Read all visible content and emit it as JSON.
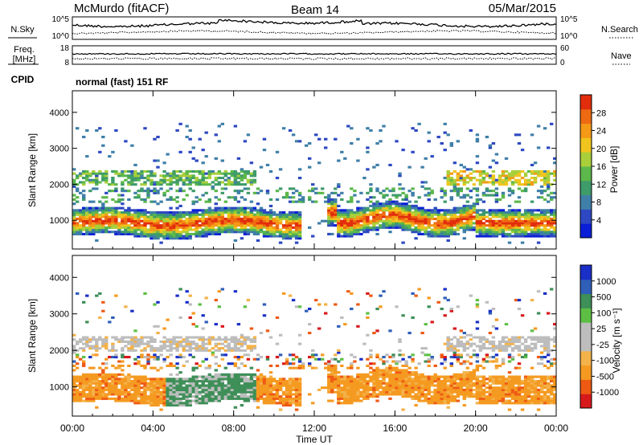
{
  "header": {
    "station": "McMurdo (fitACF)",
    "beam": "Beam 14",
    "date": "05/Mar/2015"
  },
  "noise_panel": {
    "left_label": "N.Sky",
    "right_label": "N.Search",
    "left_ticks": [
      "10^5",
      "10^0"
    ],
    "right_ticks": [
      "10^5",
      "10^0"
    ]
  },
  "freq_panel": {
    "label_line1": "Freq.",
    "label_line2": "[MHz]",
    "left_ticks": [
      "18",
      "8"
    ],
    "right_ticks": [
      "60",
      "0"
    ],
    "right_label": "Nave"
  },
  "cpid_panel": {
    "label": "CPID",
    "text": "normal (fast) 151 RF"
  },
  "chart_data": [
    {
      "type": "heatmap",
      "title": "",
      "xlabel": "Time UT",
      "ylabel": "Slant Range [km]",
      "x_ticks": [
        "00:00",
        "04:00",
        "08:00",
        "12:00",
        "16:00",
        "20:00",
        "00:00"
      ],
      "x_range_hours": [
        0,
        24
      ],
      "y_ticks": [
        1000,
        2000,
        3000,
        4000
      ],
      "ylim": [
        200,
        4600
      ],
      "colorbar": {
        "label": "Power [dB]",
        "ticks": [
          "28",
          "24",
          "20",
          "16",
          "12",
          "8",
          "4"
        ],
        "range": [
          0,
          32
        ]
      }
    },
    {
      "type": "heatmap",
      "title": "",
      "xlabel": "Time UT",
      "ylabel": "Slant Range [km]",
      "x_ticks": [
        "00:00",
        "04:00",
        "08:00",
        "12:00",
        "16:00",
        "20:00",
        "00:00"
      ],
      "x_range_hours": [
        0,
        24
      ],
      "y_ticks": [
        1000,
        2000,
        3000,
        4000
      ],
      "ylim": [
        200,
        4600
      ],
      "colorbar": {
        "label": "Velocity [m s⁻¹]",
        "ticks": [
          "1000",
          "500",
          "100",
          "25",
          "-25",
          "-100",
          "-500",
          "-1000"
        ]
      }
    }
  ],
  "colors": {
    "power_scale": [
      "#0a1fd6",
      "#2d48c2",
      "#3f7fa8",
      "#3e9b6a",
      "#5cb84a",
      "#a9cf3a",
      "#f0c51e",
      "#f59a17",
      "#ee6a12",
      "#e22d0c"
    ],
    "velocity_scale": [
      "#d8191c",
      "#ee5a14",
      "#f59a21",
      "#f3b24a",
      "#bdbdbd",
      "#bdbdbd",
      "#5cbf44",
      "#3e8f58",
      "#2f5fb8",
      "#1a2fc8"
    ]
  }
}
